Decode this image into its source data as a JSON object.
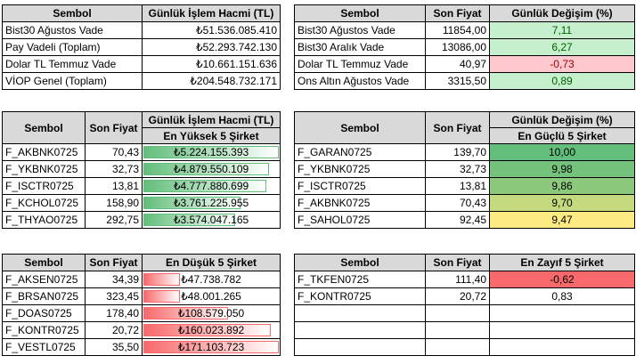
{
  "top_left": {
    "headers": [
      "Sembol",
      "Günlük İşlem Hacmi (TL)"
    ],
    "rows": [
      [
        "Bist30 Ağustos Vade",
        "₺51.536.085.410"
      ],
      [
        "Pay Vadeli (Toplam)",
        "₺52.293.742.130"
      ],
      [
        "Dolar TL Temmuz Vade",
        "₺10.661.151.636"
      ],
      [
        "VİOP Genel (Toplam)",
        "₺204.548.732.171"
      ]
    ]
  },
  "top_right": {
    "headers": [
      "Sembol",
      "Son Fiyat",
      "Günlük Değişim (%)"
    ],
    "rows": [
      {
        "sym": "Bist30 Ağustos Vade",
        "price": "11854,00",
        "chg": "7,11",
        "bg": "#c6efce",
        "fg": "#006100"
      },
      {
        "sym": "Bist30 Aralık Vade",
        "price": "13086,00",
        "chg": "6,27",
        "bg": "#c6efce",
        "fg": "#006100"
      },
      {
        "sym": "Dolar TL Temmuz Vade",
        "price": "40,97",
        "chg": "-0,73",
        "bg": "#ffc7ce",
        "fg": "#9c0006"
      },
      {
        "sym": "Ons Altın Ağustos Vade",
        "price": "3315,50",
        "chg": "0,89",
        "bg": "#c6efce",
        "fg": "#006100"
      }
    ]
  },
  "mid_left": {
    "headers": [
      "Sembol",
      "Son Fiyat",
      "Günlük İşlem Hacmi (TL)"
    ],
    "subheader": "En Yüksek 5 Şirket",
    "bar_color": "#63be7b",
    "rows": [
      {
        "sym": "F_AKBNK0725",
        "price": "70,43",
        "vol": "₺5.224.155.393",
        "level": 1.0
      },
      {
        "sym": "F_YKBNK0725",
        "price": "32,73",
        "vol": "₺4.879.550.109",
        "level": 0.93
      },
      {
        "sym": "F_ISCTR0725",
        "price": "13,81",
        "vol": "₺4.777.880.699",
        "level": 0.91
      },
      {
        "sym": "F_KCHOL0725",
        "price": "158,90",
        "vol": "₺3.761.225.955",
        "level": 0.72
      },
      {
        "sym": "F_THYAO0725",
        "price": "292,75",
        "vol": "₺3.574.047.165",
        "level": 0.68
      }
    ]
  },
  "mid_right": {
    "headers": [
      "Sembol",
      "Son Fiyat",
      "Günlük Değişim (%)"
    ],
    "subheader": "En Güçlü 5 Şirket",
    "rows": [
      {
        "sym": "F_GARAN0725",
        "price": "139,70",
        "chg": "10,00",
        "bg": "#63be7b"
      },
      {
        "sym": "F_YKBNK0725",
        "price": "32,73",
        "chg": "9,98",
        "bg": "#74c27c"
      },
      {
        "sym": "F_ISCTR0725",
        "price": "13,81",
        "chg": "9,86",
        "bg": "#8cc97d"
      },
      {
        "sym": "F_AKBNK0725",
        "price": "70,43",
        "chg": "9,70",
        "bg": "#c5d97f"
      },
      {
        "sym": "F_SAHOL0725",
        "price": "92,45",
        "chg": "9,47",
        "bg": "#ffeb84"
      }
    ]
  },
  "bot_left": {
    "headers": [
      "Sembol",
      "Son Fiyat",
      "En Düşük 5 Şirket"
    ],
    "bar_color": "#f8696b",
    "rows": [
      {
        "sym": "F_AKSEN0725",
        "price": "34,39",
        "vol": "₺47.738.782",
        "level": 0.28
      },
      {
        "sym": "F_BRSAN0725",
        "price": "323,45",
        "vol": "₺48.001.265",
        "level": 0.28
      },
      {
        "sym": "F_DOAS0725",
        "price": "178,40",
        "vol": "₺108.579.050",
        "level": 0.63
      },
      {
        "sym": "F_KONTR0725",
        "price": "20,72",
        "vol": "₺160.023.892",
        "level": 0.94
      },
      {
        "sym": "F_VESTL0725",
        "price": "35,50",
        "vol": "₺171.103.723",
        "level": 1.0
      }
    ]
  },
  "bot_right": {
    "headers": [
      "Sembol",
      "Son Fiyat",
      "En Zayıf 5 Şirket"
    ],
    "rows": [
      {
        "sym": "F_TKFEN0725",
        "price": "111,40",
        "chg": "-0,62",
        "bg": "#f8696b"
      },
      {
        "sym": "F_KONTR0725",
        "price": "20,72",
        "chg": "0,83",
        "bg": "#ffffff"
      },
      {
        "sym": "",
        "price": "",
        "chg": "",
        "bg": "#ffffff"
      },
      {
        "sym": "",
        "price": "",
        "chg": "",
        "bg": "#ffffff"
      },
      {
        "sym": "",
        "price": "",
        "chg": "",
        "bg": "#ffffff"
      }
    ]
  }
}
